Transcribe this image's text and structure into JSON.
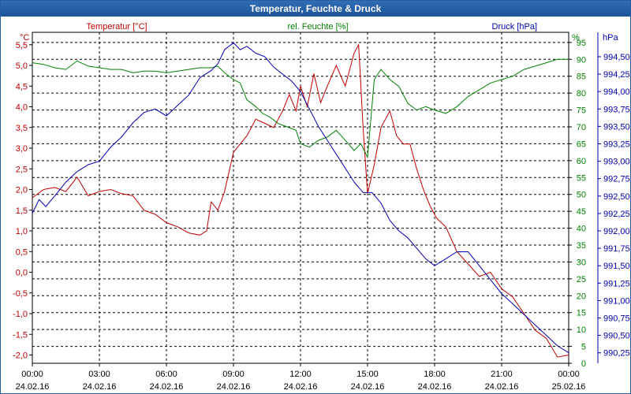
{
  "window": {
    "title": "Temperatur, Feuchte & Druck"
  },
  "chart_data": {
    "type": "line",
    "title": "Temperatur, Feuchte & Druck",
    "grid": true,
    "colors": {
      "temperature": "#c00000",
      "humidity": "#008000",
      "pressure": "#0000b0"
    },
    "x_ticks": [
      {
        "time": "00:00",
        "date": "24.02.16"
      },
      {
        "time": "03:00",
        "date": "24.02.16"
      },
      {
        "time": "06:00",
        "date": "24.02.16"
      },
      {
        "time": "09:00",
        "date": "24.02.16"
      },
      {
        "time": "12:00",
        "date": "24.02.16"
      },
      {
        "time": "15:00",
        "date": "24.02.16"
      },
      {
        "time": "18:00",
        "date": "24.02.16"
      },
      {
        "time": "21:00",
        "date": "24.02.16"
      },
      {
        "time": "00:00",
        "date": "25.02.16"
      }
    ],
    "axes": {
      "temperature": {
        "unit": "°C",
        "label": "Temperatur [°C]",
        "range": [
          -2.2,
          5.8
        ],
        "ticks": [
          "5,5",
          "5,0",
          "4,5",
          "4,0",
          "3,5",
          "3,0",
          "2,5",
          "2,0",
          "1,5",
          "1,0",
          "0,5",
          "0,0",
          "-0,5",
          "-1,0",
          "-1,5",
          "-2,0"
        ],
        "tick_values": [
          5.5,
          5.0,
          4.5,
          4.0,
          3.5,
          3.0,
          2.5,
          2.0,
          1.5,
          1.0,
          0.5,
          0.0,
          -0.5,
          -1.0,
          -1.5,
          -2.0
        ]
      },
      "humidity": {
        "unit": "%",
        "label": "rel. Feuchte [%]",
        "range": [
          0,
          98
        ],
        "ticks": [
          "95",
          "90",
          "85",
          "80",
          "75",
          "70",
          "65",
          "60",
          "55",
          "50",
          "45",
          "40",
          "35",
          "30",
          "25",
          "20",
          "15",
          "10",
          "5",
          "0"
        ],
        "tick_values": [
          95,
          90,
          85,
          80,
          75,
          70,
          65,
          60,
          55,
          50,
          45,
          40,
          35,
          30,
          25,
          20,
          15,
          10,
          5,
          0
        ]
      },
      "pressure": {
        "unit": "hPa",
        "label": "Druck [hPa]",
        "range": [
          990.1,
          994.85
        ],
        "ticks": [
          "994,50",
          "994,25",
          "994,00",
          "993,75",
          "993,50",
          "993,25",
          "993,00",
          "992,75",
          "992,50",
          "992,25",
          "992,00",
          "991,75",
          "991,50",
          "991,25",
          "991,00",
          "990,75",
          "990,50",
          "990,25"
        ],
        "tick_values": [
          994.5,
          994.25,
          994.0,
          993.75,
          993.5,
          993.25,
          993.0,
          992.75,
          992.5,
          992.25,
          992.0,
          991.75,
          991.5,
          991.25,
          991.0,
          990.75,
          990.5,
          990.25
        ]
      }
    },
    "series": [
      {
        "name": "Temperatur",
        "axis": "temperature",
        "x": [
          0,
          0.5,
          1,
          1.5,
          2,
          2.5,
          3,
          3.5,
          4,
          4.5,
          5,
          5.5,
          6,
          6.5,
          7,
          7.5,
          7.8,
          8,
          8.3,
          8.6,
          9,
          9.3,
          9.6,
          10,
          10.4,
          10.8,
          11.2,
          11.5,
          11.8,
          12,
          12.3,
          12.6,
          12.9,
          13.2,
          13.6,
          14,
          14.4,
          14.6,
          14.8,
          15,
          15.3,
          15.6,
          16,
          16.3,
          16.6,
          16.9,
          17.2,
          17.5,
          17.8,
          18.1,
          18.5,
          19,
          19.5,
          20,
          20.5,
          21,
          21.5,
          22,
          22.5,
          23,
          23.5,
          24
        ],
        "y": [
          1.8,
          2.0,
          2.05,
          1.95,
          2.3,
          1.85,
          1.95,
          2.0,
          1.9,
          1.85,
          1.5,
          1.4,
          1.2,
          1.1,
          0.95,
          0.9,
          1.0,
          1.7,
          1.5,
          1.95,
          2.9,
          3.1,
          3.3,
          3.7,
          3.6,
          3.5,
          3.9,
          4.3,
          3.9,
          4.5,
          4.0,
          4.8,
          4.1,
          4.5,
          5.0,
          4.5,
          5.3,
          5.5,
          3.5,
          1.9,
          2.6,
          3.5,
          3.9,
          3.3,
          3.1,
          3.1,
          2.5,
          2.0,
          1.6,
          1.3,
          1.1,
          0.5,
          0.2,
          -0.1,
          0.0,
          -0.4,
          -0.6,
          -1.0,
          -1.4,
          -1.6,
          -2.05,
          -2.0
        ]
      },
      {
        "name": "rel. Feuchte",
        "axis": "humidity",
        "x": [
          0,
          0.5,
          1,
          1.5,
          2,
          2.5,
          3,
          3.5,
          4,
          4.5,
          5,
          5.5,
          6,
          6.5,
          7,
          7.5,
          8,
          8.3,
          8.6,
          9,
          9.3,
          9.6,
          10,
          10.3,
          10.6,
          11,
          11.4,
          11.8,
          12,
          12.4,
          12.8,
          13.2,
          13.6,
          14,
          14.4,
          14.7,
          15,
          15.3,
          15.6,
          16,
          16.4,
          16.8,
          17.2,
          17.6,
          18,
          18.5,
          19,
          19.5,
          20,
          20.5,
          21,
          21.5,
          22,
          22.5,
          23,
          23.5,
          24
        ],
        "y": [
          89,
          88.5,
          87.5,
          87,
          89.5,
          88,
          87.5,
          87,
          87,
          86,
          86.5,
          86.5,
          86,
          86.5,
          87,
          87.5,
          87.5,
          88,
          86,
          84,
          83,
          78,
          76,
          74,
          73,
          71,
          70,
          69,
          65,
          64,
          66,
          67,
          69,
          66,
          63,
          65,
          61,
          84,
          87,
          84,
          82,
          77,
          75,
          76,
          75,
          74,
          76,
          79,
          81,
          83,
          84,
          85,
          87,
          88,
          89,
          90,
          90
        ]
      },
      {
        "name": "Druck",
        "axis": "pressure",
        "x": [
          0,
          0.3,
          0.6,
          1,
          1.5,
          2,
          2.5,
          3,
          3.5,
          4,
          4.5,
          5,
          5.5,
          6,
          6.5,
          7,
          7.5,
          8,
          8.3,
          8.6,
          9,
          9.3,
          9.6,
          10,
          10.4,
          10.8,
          11.2,
          11.6,
          12,
          12.4,
          12.8,
          13.2,
          13.6,
          14,
          14.4,
          14.8,
          15.2,
          15.6,
          16,
          16.4,
          16.8,
          17.2,
          17.6,
          18,
          18.5,
          19,
          19.5,
          20,
          20.5,
          21,
          21.5,
          22,
          22.5,
          23,
          23.5,
          24
        ],
        "y": [
          992.25,
          992.45,
          992.35,
          992.5,
          992.7,
          992.85,
          992.95,
          993.0,
          993.2,
          993.35,
          993.55,
          993.7,
          993.75,
          993.65,
          993.8,
          993.95,
          994.2,
          994.3,
          994.4,
          994.6,
          994.7,
          994.6,
          994.65,
          994.55,
          994.5,
          994.35,
          994.25,
          994.15,
          994.0,
          993.75,
          993.5,
          993.3,
          993.1,
          992.9,
          992.7,
          992.55,
          992.55,
          992.4,
          992.15,
          992.0,
          991.9,
          991.75,
          991.6,
          991.5,
          991.6,
          991.7,
          991.7,
          991.5,
          991.3,
          991.1,
          990.95,
          990.8,
          990.65,
          990.5,
          990.35,
          990.25
        ]
      }
    ]
  }
}
